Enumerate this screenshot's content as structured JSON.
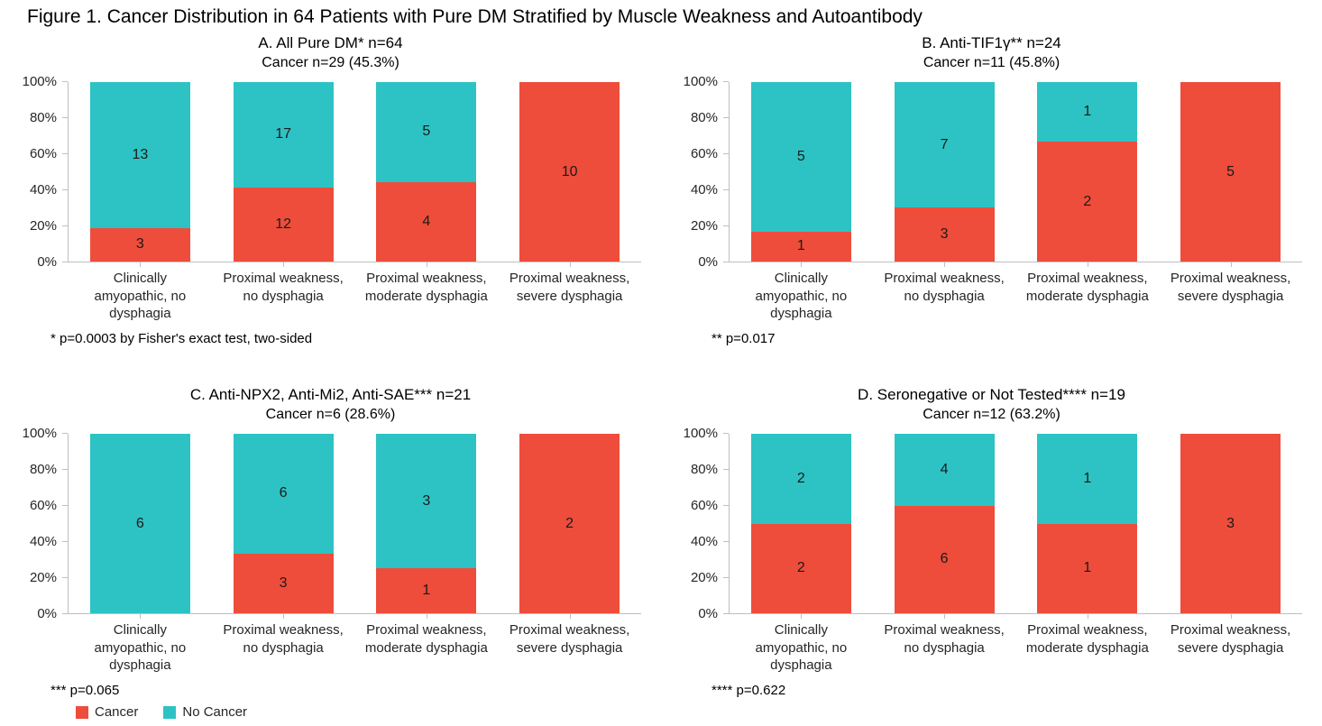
{
  "figure_title": "Figure 1. Cancer Distribution in 64 Patients with Pure DM Stratified by Muscle Weakness and Autoantibody",
  "colors": {
    "cancer": "#EE4D3B",
    "no_cancer": "#2DC3C4",
    "axis_line": "#BFBFBF",
    "text": "#000000"
  },
  "legend": [
    {
      "label": "Cancer",
      "color_key": "cancer",
      "swatch": "red-square-icon"
    },
    {
      "label": "No Cancer",
      "color_key": "no_cancer",
      "swatch": "teal-square-icon"
    }
  ],
  "axis": {
    "y_ticks": [
      "0%",
      "20%",
      "40%",
      "60%",
      "80%",
      "100%"
    ],
    "y_tick_values": [
      0,
      20,
      40,
      60,
      80,
      100
    ]
  },
  "chart_data": [
    {
      "id": "A",
      "type": "bar",
      "stacked": true,
      "unit": "percent-of-column-total",
      "title": "A. All Pure DM* n=64",
      "subtitle": "Cancer n=29 (45.3%)",
      "footnote": "* p=0.0003 by Fisher's exact test, two-sided",
      "categories": [
        "Clinically amyopathic, no dysphagia",
        "Proximal weakness, no dysphagia",
        "Proximal weakness, moderate dysphagia",
        "Proximal weakness, severe dysphagia"
      ],
      "category_lines": [
        [
          "Clinically",
          "amyopathic, no",
          "dysphagia"
        ],
        [
          "Proximal weakness,",
          "no dysphagia"
        ],
        [
          "Proximal weakness,",
          "moderate dysphagia"
        ],
        [
          "Proximal weakness,",
          "severe dysphagia"
        ]
      ],
      "series": [
        {
          "name": "Cancer",
          "color_key": "cancer",
          "values": [
            3,
            12,
            4,
            10
          ]
        },
        {
          "name": "No Cancer",
          "color_key": "no_cancer",
          "values": [
            13,
            17,
            5,
            0
          ]
        }
      ],
      "ylim": [
        0,
        100
      ],
      "grid": false,
      "legend_position": "bottom-left-of-figure"
    },
    {
      "id": "B",
      "type": "bar",
      "stacked": true,
      "unit": "percent-of-column-total",
      "title": "B. Anti-TIF1γ** n=24",
      "subtitle": "Cancer n=11 (45.8%)",
      "footnote": "** p=0.017",
      "categories": [
        "Clinically amyopathic, no dysphagia",
        "Proximal weakness, no dysphagia",
        "Proximal weakness, moderate dysphagia",
        "Proximal weakness, severe dysphagia"
      ],
      "category_lines": [
        [
          "Clinically",
          "amyopathic, no",
          "dysphagia"
        ],
        [
          "Proximal weakness,",
          "no dysphagia"
        ],
        [
          "Proximal weakness,",
          "moderate dysphagia"
        ],
        [
          "Proximal weakness,",
          "severe dysphagia"
        ]
      ],
      "series": [
        {
          "name": "Cancer",
          "color_key": "cancer",
          "values": [
            1,
            3,
            2,
            5
          ]
        },
        {
          "name": "No Cancer",
          "color_key": "no_cancer",
          "values": [
            5,
            7,
            1,
            0
          ]
        }
      ],
      "ylim": [
        0,
        100
      ],
      "grid": false
    },
    {
      "id": "C",
      "type": "bar",
      "stacked": true,
      "unit": "percent-of-column-total",
      "title": "C. Anti-NPX2, Anti-Mi2, Anti-SAE*** n=21",
      "subtitle": "Cancer n=6 (28.6%)",
      "footnote": "*** p=0.065",
      "categories": [
        "Clinically amyopathic, no dysphagia",
        "Proximal weakness, no dysphagia",
        "Proximal weakness, moderate dysphagia",
        "Proximal weakness, severe dysphagia"
      ],
      "category_lines": [
        [
          "Clinically",
          "amyopathic, no",
          "dysphagia"
        ],
        [
          "Proximal weakness,",
          "no dysphagia"
        ],
        [
          "Proximal weakness,",
          "moderate dysphagia"
        ],
        [
          "Proximal weakness,",
          "severe dysphagia"
        ]
      ],
      "series": [
        {
          "name": "Cancer",
          "color_key": "cancer",
          "values": [
            0,
            3,
            1,
            2
          ]
        },
        {
          "name": "No Cancer",
          "color_key": "no_cancer",
          "values": [
            6,
            6,
            3,
            0
          ]
        }
      ],
      "ylim": [
        0,
        100
      ],
      "grid": false
    },
    {
      "id": "D",
      "type": "bar",
      "stacked": true,
      "unit": "percent-of-column-total",
      "title": "D. Seronegative or Not Tested**** n=19",
      "subtitle": "Cancer n=12 (63.2%)",
      "footnote": "**** p=0.622",
      "categories": [
        "Clinically amyopathic, no dysphagia",
        "Proximal weakness, no dysphagia",
        "Proximal weakness, moderate dysphagia",
        "Proximal weakness, severe dysphagia"
      ],
      "category_lines": [
        [
          "Clinically",
          "amyopathic, no",
          "dysphagia"
        ],
        [
          "Proximal weakness,",
          "no dysphagia"
        ],
        [
          "Proximal weakness,",
          "moderate dysphagia"
        ],
        [
          "Proximal weakness,",
          "severe dysphagia"
        ]
      ],
      "series": [
        {
          "name": "Cancer",
          "color_key": "cancer",
          "values": [
            2,
            6,
            1,
            3
          ]
        },
        {
          "name": "No Cancer",
          "color_key": "no_cancer",
          "values": [
            2,
            4,
            1,
            0
          ]
        }
      ],
      "ylim": [
        0,
        100
      ],
      "grid": false
    }
  ]
}
